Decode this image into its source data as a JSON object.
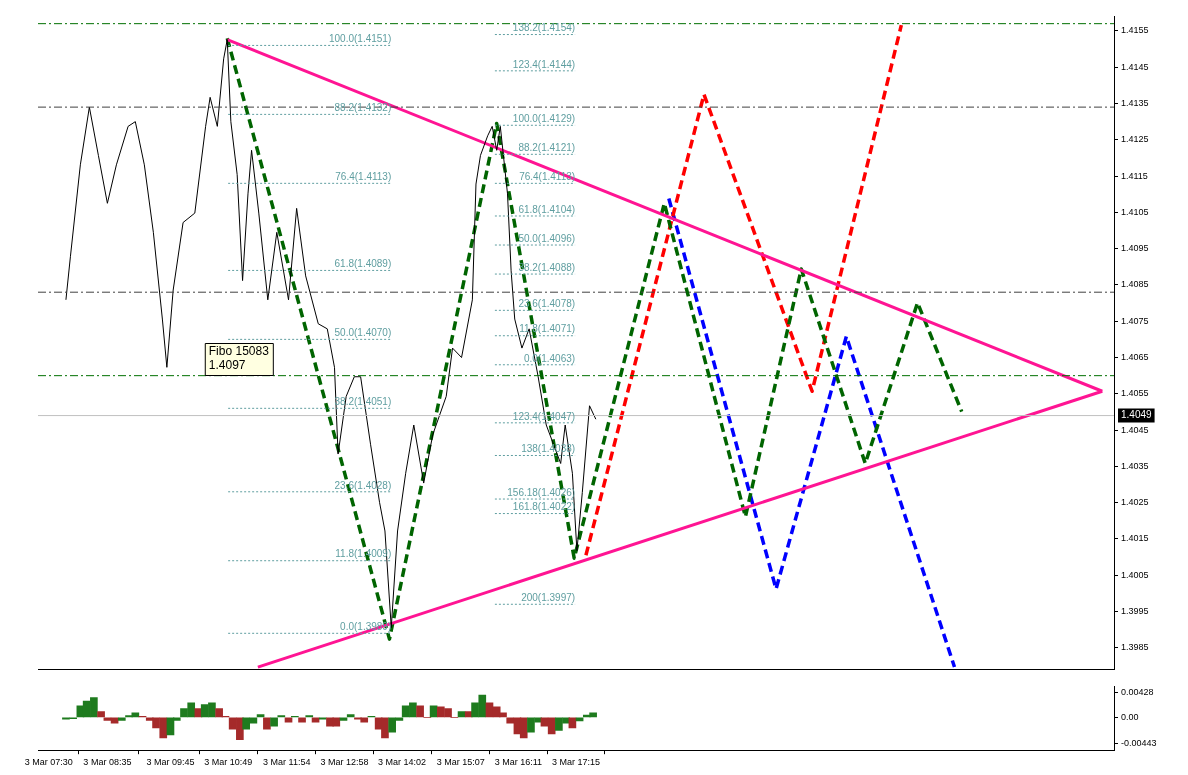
{
  "chart_data": [
    {
      "type": "line",
      "xlim": [
        "--03-03T07:18",
        "--03-04T03:12"
      ],
      "ylim": [
        1.3979,
        1.4159
      ],
      "xticks": [
        {
          "value": "--03-03T07:30",
          "label": "3 Mar 07:30"
        },
        {
          "value": "--03-03T08:35",
          "label": "3 Mar 08:35"
        },
        {
          "value": "--03-03T09:45",
          "label": "3 Mar 09:45"
        },
        {
          "value": "--03-03T10:49",
          "label": "3 Mar 10:49"
        },
        {
          "value": "--03-03T11:54",
          "label": "3 Mar 11:54"
        },
        {
          "value": "--03-03T12:58",
          "label": "3 Mar 12:58"
        },
        {
          "value": "--03-03T14:02",
          "label": "3 Mar 14:02"
        },
        {
          "value": "--03-03T15:07",
          "label": "3 Mar 15:07"
        },
        {
          "value": "--03-03T16:11",
          "label": "3 Mar 16:11"
        },
        {
          "value": "--03-03T17:15",
          "label": "3 Mar 17:15"
        }
      ],
      "yticks": [
        1.3985,
        1.3995,
        1.4005,
        1.4015,
        1.4025,
        1.4035,
        1.4045,
        1.4055,
        1.4065,
        1.4075,
        1.4085,
        1.4095,
        1.4105,
        1.4115,
        1.4125,
        1.4135,
        1.4145,
        1.4155
      ],
      "tick_labels": "y",
      "grid": false,
      "legend": false,
      "marker": "none",
      "series": [
        {
          "color": "#000000",
          "line_style": "solid",
          "x": [
            "--03-03T07:49",
            "--03-03T07:54",
            "--03-03T08:05",
            "--03-03T08:15",
            "--03-03T08:25",
            "--03-03T08:35",
            "--03-03T08:45",
            "--03-03T08:58",
            "--03-03T09:06",
            "--03-03T09:16",
            "--03-03T09:26",
            "--03-03T09:36",
            "--03-03T09:41",
            "--03-03T09:48",
            "--03-03T09:59",
            "--03-03T10:12",
            "--03-03T10:24",
            "--03-03T10:29",
            "--03-03T10:37",
            "--03-03T10:44",
            "--03-03T10:48",
            "--03-03T10:52",
            "--03-03T10:59",
            "--03-03T11:05",
            "--03-03T11:11",
            "--03-03T11:15",
            "--03-03T11:23",
            "--03-03T11:33",
            "--03-03T11:43",
            "--03-03T11:56",
            "--03-03T12:05",
            "--03-03T12:15",
            "--03-03T12:29",
            "--03-03T12:39",
            "--03-03T12:47",
            "--03-03T12:51",
            "--03-03T13:00",
            "--03-03T13:09",
            "--03-03T13:16",
            "--03-03T13:27",
            "--03-03T13:37",
            "--03-03T13:43",
            "--03-03T13:50",
            "--03-03T13:57",
            "--03-03T14:06",
            "--03-03T14:15",
            "--03-03T14:26",
            "--03-03T14:36",
            "--03-03T14:51",
            "--03-03T14:58",
            "--03-03T15:08",
            "--03-03T15:20",
            "--03-03T15:24",
            "--03-03T15:29",
            "--03-03T15:37",
            "--03-03T15:42",
            "--03-03T15:47",
            "--03-03T15:51",
            "--03-03T15:59",
            "--03-03T16:03",
            "--03-03T16:07",
            "--03-03T16:15",
            "--03-03T16:23",
            "--03-03T16:33",
            "--03-03T16:42",
            "--03-03T16:50",
            "--03-03T16:58",
            "--03-03T17:03",
            "--03-03T17:11",
            "--03-03T17:16",
            "--03-03T17:22",
            "--03-03T17:30",
            "--03-03T17:37"
          ],
          "values": [
            1.40809,
            1.40929,
            1.41181,
            1.4134,
            1.41207,
            1.41075,
            1.41181,
            1.41287,
            1.413,
            1.41181,
            1.40995,
            1.40756,
            1.40623,
            1.40836,
            1.41022,
            1.41048,
            1.41287,
            1.41367,
            1.41287,
            1.41473,
            1.41526,
            1.413,
            1.41154,
            1.40862,
            1.41101,
            1.41221,
            1.41048,
            1.40809,
            1.40995,
            1.40809,
            1.41061,
            1.40875,
            1.40743,
            1.40729,
            1.40623,
            1.40384,
            1.40543,
            1.40597,
            1.40597,
            1.40411,
            1.40251,
            1.40172,
            1.39906,
            1.40172,
            1.40331,
            1.40464,
            1.40304,
            1.40437,
            1.40543,
            1.40676,
            1.4065,
            1.40809,
            1.41128,
            1.41207,
            1.41261,
            1.41287,
            1.41221,
            1.41287,
            1.41101,
            1.40889,
            1.40756,
            1.40676,
            1.40729,
            1.40597,
            1.40464,
            1.40411,
            1.40358,
            1.40464,
            1.40331,
            1.40118,
            1.40278,
            1.40517,
            1.4048
          ]
        },
        {
          "color": "#ff1493",
          "line_style": "solid",
          "x": [
            "--03-03T10:48",
            "--03-04T02:59"
          ],
          "values": [
            1.41526,
            1.40557
          ]
        },
        {
          "color": "#ff1493",
          "line_style": "solid",
          "x": [
            "--03-03T11:22",
            "--03-04T02:59"
          ],
          "values": [
            1.39797,
            1.40557
          ]
        },
        {
          "color": "#006400",
          "line_style": "dashed",
          "x": [
            "--03-03T10:48",
            "--03-03T13:48",
            "--03-03T15:47",
            "--03-03T17:13",
            "--03-03T18:53",
            "--03-03T20:23",
            "--03-03T21:25",
            "--03-03T22:36",
            "--03-03T23:34",
            "--03-04T00:23"
          ],
          "values": [
            1.4153,
            1.39874,
            1.41295,
            1.40097,
            1.41075,
            1.40211,
            1.40894,
            1.40358,
            1.40801,
            1.40501
          ]
        },
        {
          "color": "#ff0000",
          "line_style": "dashed",
          "x": [
            "--03-03T17:26",
            "--03-03T19:37",
            "--03-03T21:37",
            "--03-03T23:16"
          ],
          "values": [
            1.40105,
            1.41375,
            1.40557,
            1.41566
          ]
        },
        {
          "color": "#0000ff",
          "line_style": "dashed",
          "x": [
            "--03-03T18:58",
            "--03-03T20:57",
            "--03-03T22:15",
            "--03-04T00:15"
          ],
          "values": [
            1.41088,
            1.40012,
            1.40708,
            1.39797
          ]
        },
        {
          "name": "100.0(1.4151)",
          "color": "#5f9ea0",
          "line_style": "dotted",
          "x": [
            "--03-03T10:49",
            "--03-03T13:50"
          ],
          "values": [
            1.4151,
            1.4151
          ]
        },
        {
          "name": "88.2(1.4132)",
          "color": "#5f9ea0",
          "line_style": "dotted",
          "x": [
            "--03-03T10:49",
            "--03-03T13:50"
          ],
          "values": [
            1.4132,
            1.4132
          ]
        },
        {
          "name": "76.4(1.4113)",
          "color": "#5f9ea0",
          "line_style": "dotted",
          "x": [
            "--03-03T10:49",
            "--03-03T13:50"
          ],
          "values": [
            1.4113,
            1.4113
          ]
        },
        {
          "name": "61.8(1.4089)",
          "color": "#5f9ea0",
          "line_style": "dotted",
          "x": [
            "--03-03T10:49",
            "--03-03T13:50"
          ],
          "values": [
            1.4089,
            1.4089
          ]
        },
        {
          "name": "50.0(1.4070)",
          "color": "#5f9ea0",
          "line_style": "dotted",
          "x": [
            "--03-03T10:49",
            "--03-03T13:50"
          ],
          "values": [
            1.407,
            1.407
          ]
        },
        {
          "name": "38.2(1.4051)",
          "color": "#5f9ea0",
          "line_style": "dotted",
          "x": [
            "--03-03T10:49",
            "--03-03T13:50"
          ],
          "values": [
            1.4051,
            1.4051
          ]
        },
        {
          "name": "23.6(1.4028)",
          "color": "#5f9ea0",
          "line_style": "dotted",
          "x": [
            "--03-03T10:49",
            "--03-03T13:50"
          ],
          "values": [
            1.4028,
            1.4028
          ]
        },
        {
          "name": "11.8(1.4009)",
          "color": "#5f9ea0",
          "line_style": "dotted",
          "x": [
            "--03-03T10:49",
            "--03-03T13:50"
          ],
          "values": [
            1.4009,
            1.4009
          ]
        },
        {
          "name": "0.0(1.3989)",
          "color": "#5f9ea0",
          "line_style": "dotted",
          "x": [
            "--03-03T10:49",
            "--03-03T13:50"
          ],
          "values": [
            1.3989,
            1.3989
          ]
        },
        {
          "name": "138.2(1.4154)",
          "color": "#5f9ea0",
          "line_style": "dotted",
          "x": [
            "--03-03T15:45",
            "--03-03T17:14"
          ],
          "values": [
            1.4154,
            1.4154
          ]
        },
        {
          "name": "123.4(1.4144)",
          "color": "#5f9ea0",
          "line_style": "dotted",
          "x": [
            "--03-03T15:45",
            "--03-03T17:14"
          ],
          "values": [
            1.4144,
            1.4144
          ]
        },
        {
          "name": "100.0(1.4129)",
          "color": "#5f9ea0",
          "line_style": "dotted",
          "x": [
            "--03-03T15:45",
            "--03-03T17:14"
          ],
          "values": [
            1.4129,
            1.4129
          ]
        },
        {
          "name": "88.2(1.4121)",
          "color": "#5f9ea0",
          "line_style": "dotted",
          "x": [
            "--03-03T15:45",
            "--03-03T17:14"
          ],
          "values": [
            1.4121,
            1.4121
          ]
        },
        {
          "name": "76.4(1.4113)",
          "color": "#5f9ea0",
          "line_style": "dotted",
          "x": [
            "--03-03T15:45",
            "--03-03T17:14"
          ],
          "values": [
            1.4113,
            1.4113
          ]
        },
        {
          "name": "61.8(1.4104)",
          "color": "#5f9ea0",
          "line_style": "dotted",
          "x": [
            "--03-03T15:45",
            "--03-03T17:14"
          ],
          "values": [
            1.4104,
            1.4104
          ]
        },
        {
          "name": "50.0(1.4096)",
          "color": "#5f9ea0",
          "line_style": "dotted",
          "x": [
            "--03-03T15:45",
            "--03-03T17:14"
          ],
          "values": [
            1.4096,
            1.4096
          ]
        },
        {
          "name": "38.2(1.4088)",
          "color": "#5f9ea0",
          "line_style": "dotted",
          "x": [
            "--03-03T15:45",
            "--03-03T17:14"
          ],
          "values": [
            1.4088,
            1.4088
          ]
        },
        {
          "name": "23.6(1.4078)",
          "color": "#5f9ea0",
          "line_style": "dotted",
          "x": [
            "--03-03T15:45",
            "--03-03T17:14"
          ],
          "values": [
            1.4078,
            1.4078
          ]
        },
        {
          "name": "11.8(1.4071)",
          "color": "#5f9ea0",
          "line_style": "dotted",
          "x": [
            "--03-03T15:45",
            "--03-03T17:14"
          ],
          "values": [
            1.4071,
            1.4071
          ]
        },
        {
          "name": "0.0(1.4063)",
          "color": "#5f9ea0",
          "line_style": "dotted",
          "x": [
            "--03-03T15:45",
            "--03-03T17:14"
          ],
          "values": [
            1.4063,
            1.4063
          ]
        },
        {
          "name": "123.4(1.4047)",
          "color": "#5f9ea0",
          "line_style": "dotted",
          "x": [
            "--03-03T15:45",
            "--03-03T17:14"
          ],
          "values": [
            1.4047,
            1.4047
          ]
        },
        {
          "name": "138(1.4038)",
          "color": "#5f9ea0",
          "line_style": "dotted",
          "x": [
            "--03-03T15:45",
            "--03-03T17:14"
          ],
          "values": [
            1.4038,
            1.4038
          ]
        },
        {
          "name": "156.18(1.4026)",
          "color": "#5f9ea0",
          "line_style": "dotted",
          "x": [
            "--03-03T15:45",
            "--03-03T17:14"
          ],
          "values": [
            1.4026,
            1.4026
          ]
        },
        {
          "name": "161.8(1.4022)",
          "color": "#5f9ea0",
          "line_style": "dotted",
          "x": [
            "--03-03T15:45",
            "--03-03T17:14"
          ],
          "values": [
            1.4022,
            1.4022
          ]
        },
        {
          "name": "200(1.3997)",
          "color": "#5f9ea0",
          "line_style": "dotted",
          "x": [
            "--03-03T15:45",
            "--03-03T17:14"
          ],
          "values": [
            1.3997,
            1.3997
          ]
        }
      ],
      "ref_lines": [
        {
          "axis": "y",
          "value": 1.4157,
          "color": "#007000",
          "line_style": "dashed"
        },
        {
          "axis": "y",
          "value": 1.4134,
          "color": "#404040",
          "line_style": "dashed"
        },
        {
          "axis": "y",
          "value": 1.4083,
          "color": "#404040",
          "line_style": "dashed"
        },
        {
          "axis": "y",
          "value": 1.406,
          "color": "#007000",
          "line_style": "dashed"
        },
        {
          "axis": "y",
          "value": 1.4049,
          "label": "1.4049",
          "color": "#c0c0c0",
          "line_style": "solid"
        }
      ],
      "annotations": [
        "Fibo 15083\n1.4097"
      ]
    },
    {
      "type": "bar",
      "xlim": [
        "--03-03T07:18",
        "--03-04T03:12"
      ],
      "ylim": [
        -0.0056,
        0.0053
      ],
      "xticks": [
        {
          "value": "--03-03T07:30",
          "label": "3 Mar 07:30"
        },
        {
          "value": "--03-03T08:35",
          "label": "3 Mar 08:35"
        },
        {
          "value": "--03-03T09:45",
          "label": "3 Mar 09:45"
        },
        {
          "value": "--03-03T10:49",
          "label": "3 Mar 10:49"
        },
        {
          "value": "--03-03T11:54",
          "label": "3 Mar 11:54"
        },
        {
          "value": "--03-03T12:58",
          "label": "3 Mar 12:58"
        },
        {
          "value": "--03-03T14:02",
          "label": "3 Mar 14:02"
        },
        {
          "value": "--03-03T15:07",
          "label": "3 Mar 15:07"
        },
        {
          "value": "--03-03T16:11",
          "label": "3 Mar 16:11"
        },
        {
          "value": "--03-03T17:15",
          "label": "3 Mar 17:15"
        }
      ],
      "yticks": [
        0.00428,
        {
          "value": 0,
          "label": "0.00"
        },
        -0.00443
      ],
      "grid": false,
      "legend": false,
      "x": [
        "--03-03T07:49",
        "--03-03T07:57",
        "--03-03T08:05",
        "--03-03T08:12",
        "--03-03T08:20",
        "--03-03T08:28",
        "--03-03T08:35",
        "--03-03T08:43",
        "--03-03T08:51",
        "--03-03T08:59",
        "--03-03T09:06",
        "--03-03T09:14",
        "--03-03T09:22",
        "--03-03T09:29",
        "--03-03T09:37",
        "--03-03T09:45",
        "--03-03T09:52",
        "--03-03T10:00",
        "--03-03T10:08",
        "--03-03T10:16",
        "--03-03T10:23",
        "--03-03T10:31",
        "--03-03T10:39",
        "--03-03T10:46",
        "--03-03T10:54",
        "--03-03T11:02",
        "--03-03T11:09",
        "--03-03T11:17",
        "--03-03T11:25",
        "--03-03T11:32",
        "--03-03T11:40",
        "--03-03T11:48",
        "--03-03T11:56",
        "--03-03T12:03",
        "--03-03T12:11",
        "--03-03T12:19",
        "--03-03T12:26",
        "--03-03T12:34",
        "--03-03T12:42",
        "--03-03T12:49",
        "--03-03T12:57",
        "--03-03T13:05",
        "--03-03T13:13",
        "--03-03T13:20",
        "--03-03T13:28",
        "--03-03T13:36",
        "--03-03T13:43",
        "--03-03T13:51",
        "--03-03T13:59",
        "--03-03T14:06",
        "--03-03T14:14",
        "--03-03T14:22",
        "--03-03T14:30",
        "--03-03T14:37",
        "--03-03T14:45",
        "--03-03T14:53",
        "--03-03T15:00",
        "--03-03T15:08",
        "--03-03T15:16",
        "--03-03T15:23",
        "--03-03T15:31",
        "--03-03T15:39",
        "--03-03T15:47",
        "--03-03T15:54",
        "--03-03T16:02",
        "--03-03T16:10",
        "--03-03T16:17",
        "--03-03T16:25",
        "--03-03T16:33",
        "--03-03T16:40",
        "--03-03T16:48",
        "--03-03T16:56",
        "--03-03T17:04",
        "--03-03T17:11",
        "--03-03T17:19",
        "--03-03T17:27",
        "--03-03T17:34"
      ],
      "values": [
        -0.0003,
        -0.0002,
        0.002,
        0.0028,
        0.0034,
        0.001,
        -0.0005,
        -0.001,
        -0.0005,
        0.0003,
        0.0008,
        0.0002,
        -0.0005,
        -0.0018,
        -0.0035,
        -0.003,
        -0.0005,
        0.0015,
        0.0025,
        0.0015,
        0.0022,
        0.0025,
        0.0015,
        0.0002,
        -0.002,
        -0.0038,
        -0.002,
        -0.001,
        0.0005,
        -0.002,
        -0.0015,
        0.0003,
        -0.0008,
        0.0002,
        -0.0008,
        0.0003,
        -0.0008,
        -0.0003,
        -0.0015,
        -0.0015,
        -0.0005,
        0.0005,
        -0.0003,
        -0.0008,
        0.0002,
        -0.002,
        -0.0035,
        -0.0025,
        -0.0005,
        0.002,
        0.0025,
        0.002,
        0,
        0.002,
        0.0018,
        0.0015,
        0,
        0.001,
        0.001,
        0.0025,
        0.0038,
        0.0025,
        0.0018,
        0.0008,
        -0.001,
        -0.0028,
        -0.0035,
        -0.0025,
        -0.0008,
        -0.0015,
        -0.0028,
        -0.0022,
        -0.001,
        -0.0018,
        -0.0006,
        0.0004,
        0.0008
      ],
      "colors": [
        "#1e7b1e",
        "#1e7b1e",
        "#1e7b1e",
        "#1e7b1e",
        "#1e7b1e",
        "#a52a2a",
        "#a52a2a",
        "#a52a2a",
        "#1e7b1e",
        "#1e7b1e",
        "#1e7b1e",
        "#a52a2a",
        "#a52a2a",
        "#a52a2a",
        "#a52a2a",
        "#1e7b1e",
        "#1e7b1e",
        "#1e7b1e",
        "#1e7b1e",
        "#a52a2a",
        "#1e7b1e",
        "#1e7b1e",
        "#a52a2a",
        "#a52a2a",
        "#a52a2a",
        "#a52a2a",
        "#1e7b1e",
        "#1e7b1e",
        "#1e7b1e",
        "#a52a2a",
        "#1e7b1e",
        "#1e7b1e",
        "#a52a2a",
        "#1e7b1e",
        "#a52a2a",
        "#1e7b1e",
        "#a52a2a",
        "#1e7b1e",
        "#a52a2a",
        "#a52a2a",
        "#1e7b1e",
        "#1e7b1e",
        "#a52a2a",
        "#a52a2a",
        "#1e7b1e",
        "#a52a2a",
        "#a52a2a",
        "#1e7b1e",
        "#1e7b1e",
        "#1e7b1e",
        "#1e7b1e",
        "#a52a2a",
        "#a52a2a",
        "#1e7b1e",
        "#a52a2a",
        "#a52a2a",
        "#a52a2a",
        "#1e7b1e",
        "#a52a2a",
        "#1e7b1e",
        "#1e7b1e",
        "#a52a2a",
        "#a52a2a",
        "#a52a2a",
        "#a52a2a",
        "#a52a2a",
        "#a52a2a",
        "#1e7b1e",
        "#1e7b1e",
        "#a52a2a",
        "#a52a2a",
        "#1e7b1e",
        "#1e7b1e",
        "#a52a2a",
        "#1e7b1e",
        "#1e7b1e",
        "#1e7b1e"
      ]
    }
  ]
}
